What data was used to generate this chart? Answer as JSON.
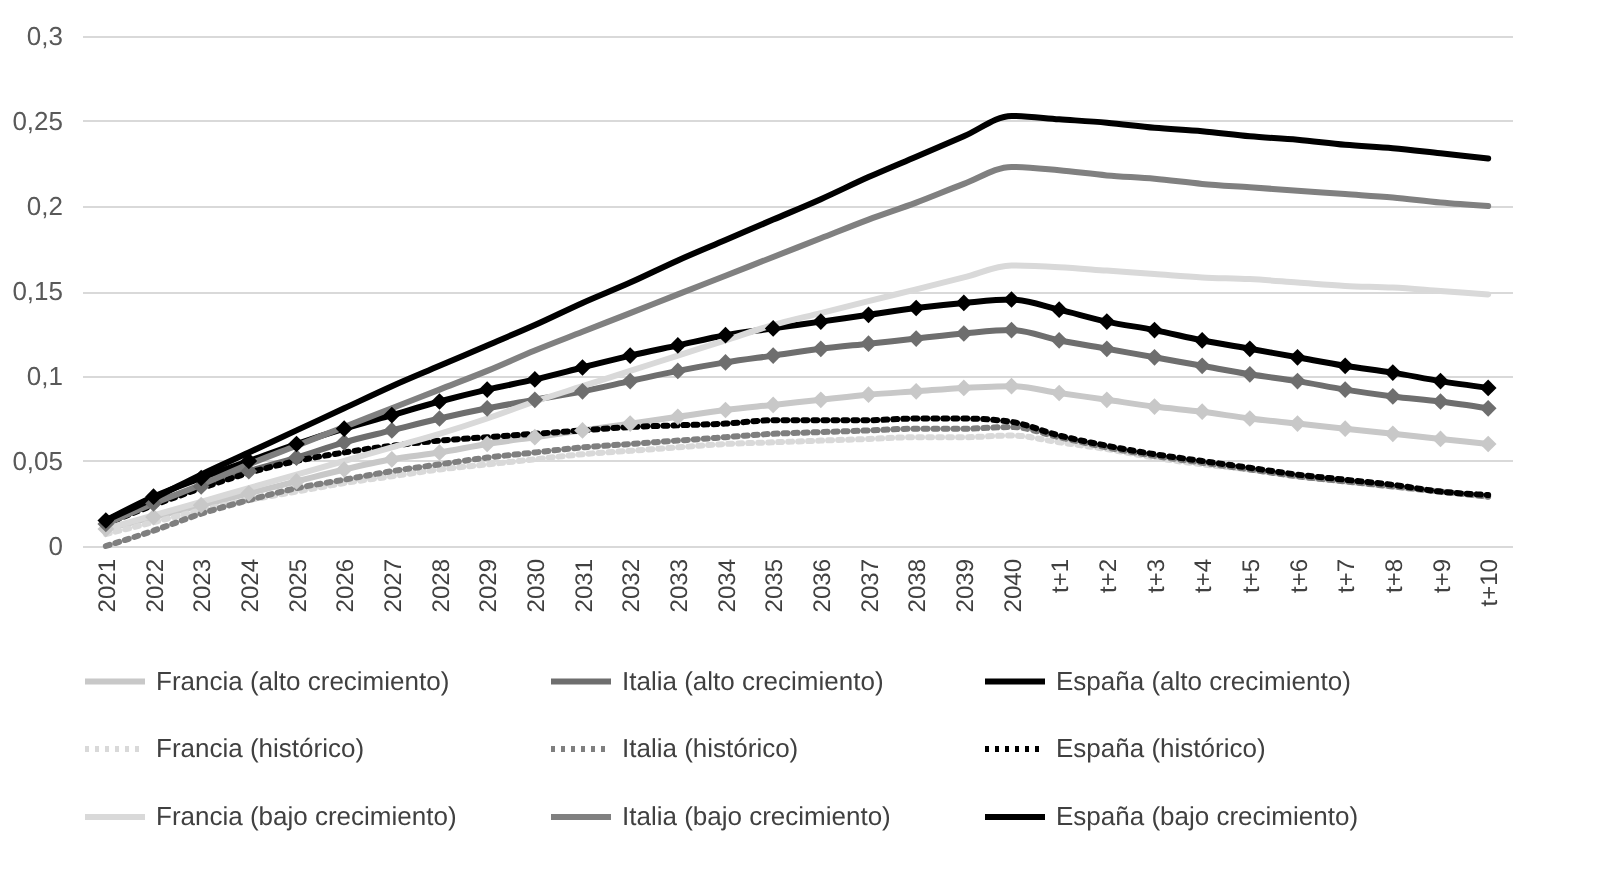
{
  "chart_data": {
    "type": "line",
    "categories": [
      "2021",
      "2022",
      "2023",
      "2024",
      "2025",
      "2026",
      "2027",
      "2028",
      "2029",
      "2030",
      "2031",
      "2032",
      "2033",
      "2034",
      "2035",
      "2036",
      "2037",
      "2038",
      "2039",
      "2040",
      "t+1",
      "t+2",
      "t+3",
      "t+4",
      "t+5",
      "t+6",
      "t+7",
      "t+8",
      "t+9",
      "t+10"
    ],
    "ylim": [
      0,
      0.3
    ],
    "yticks": [
      0,
      {
        "value": 0.05,
        "label": "0,05"
      },
      {
        "value": 0.1,
        "label": "0,1"
      },
      {
        "value": 0.15,
        "label": "0,15"
      },
      {
        "value": 0.2,
        "label": "0,2"
      },
      {
        "value": 0.25,
        "label": "0,25"
      },
      {
        "value": 0.3,
        "label": "0,3"
      }
    ],
    "grid": "y",
    "legend": "bottom",
    "series": [
      {
        "name": "Francia (alto crecimiento)",
        "color": "#c8c8c8",
        "marker": "diamond",
        "line_style": "solid",
        "values": [
          0.01,
          0.017,
          0.024,
          0.031,
          0.038,
          0.045,
          0.051,
          0.055,
          0.06,
          0.064,
          0.068,
          0.072,
          0.076,
          0.08,
          0.083,
          0.086,
          0.089,
          0.091,
          0.093,
          0.094,
          0.09,
          0.086,
          0.082,
          0.079,
          0.075,
          0.072,
          0.069,
          0.066,
          0.063,
          0.06
        ]
      },
      {
        "name": "Italia (alto crecimiento)",
        "color": "#6e6e6e",
        "marker": "diamond",
        "line_style": "solid",
        "values": [
          0.013,
          0.025,
          0.035,
          0.044,
          0.052,
          0.061,
          0.068,
          0.075,
          0.081,
          0.086,
          0.091,
          0.097,
          0.103,
          0.108,
          0.112,
          0.116,
          0.119,
          0.122,
          0.125,
          0.127,
          0.121,
          0.116,
          0.111,
          0.106,
          0.101,
          0.097,
          0.092,
          0.088,
          0.085,
          0.081
        ]
      },
      {
        "name": "España (alto crecimiento)",
        "color": "#000000",
        "marker": "diamond",
        "line_style": "solid",
        "values": [
          0.015,
          0.029,
          0.04,
          0.05,
          0.06,
          0.069,
          0.077,
          0.085,
          0.092,
          0.098,
          0.105,
          0.112,
          0.118,
          0.124,
          0.128,
          0.132,
          0.136,
          0.14,
          0.143,
          0.145,
          0.139,
          0.132,
          0.127,
          0.121,
          0.116,
          0.111,
          0.106,
          0.102,
          0.097,
          0.093
        ]
      },
      {
        "name": "Francia (histórico)",
        "color": "#d9d9d9",
        "marker": "none",
        "line_style": "dotted",
        "values": [
          0.007,
          0.014,
          0.021,
          0.027,
          0.032,
          0.037,
          0.041,
          0.045,
          0.048,
          0.051,
          0.054,
          0.056,
          0.058,
          0.06,
          0.061,
          0.062,
          0.063,
          0.064,
          0.064,
          0.065,
          0.061,
          0.057,
          0.052,
          0.048,
          0.045,
          0.041,
          0.038,
          0.035,
          0.032,
          0.029
        ]
      },
      {
        "name": "Italia (histórico)",
        "color": "#7f7f7f",
        "marker": "none",
        "line_style": "dotted",
        "values": [
          0.0,
          0.009,
          0.019,
          0.027,
          0.034,
          0.039,
          0.044,
          0.048,
          0.052,
          0.055,
          0.058,
          0.06,
          0.062,
          0.064,
          0.066,
          0.067,
          0.068,
          0.069,
          0.069,
          0.07,
          0.064,
          0.058,
          0.053,
          0.049,
          0.045,
          0.041,
          0.038,
          0.035,
          0.032,
          0.029
        ]
      },
      {
        "name": "España (histórico)",
        "color": "#000000",
        "marker": "none",
        "line_style": "dotted",
        "values": [
          0.013,
          0.024,
          0.034,
          0.043,
          0.05,
          0.055,
          0.059,
          0.062,
          0.064,
          0.066,
          0.068,
          0.07,
          0.071,
          0.072,
          0.074,
          0.074,
          0.074,
          0.075,
          0.075,
          0.073,
          0.065,
          0.059,
          0.054,
          0.05,
          0.046,
          0.042,
          0.039,
          0.036,
          0.032,
          0.03
        ]
      },
      {
        "name": "Francia (bajo crecimiento)",
        "color": "#d9d9d9",
        "marker": "none",
        "line_style": "solid",
        "values": [
          0.01,
          0.018,
          0.026,
          0.034,
          0.042,
          0.05,
          0.058,
          0.066,
          0.075,
          0.085,
          0.094,
          0.103,
          0.112,
          0.121,
          0.13,
          0.137,
          0.144,
          0.151,
          0.158,
          0.165,
          0.164,
          0.162,
          0.16,
          0.158,
          0.157,
          0.155,
          0.153,
          0.152,
          0.15,
          0.148
        ]
      },
      {
        "name": "Italia (bajo crecimiento)",
        "color": "#808080",
        "marker": "none",
        "line_style": "solid",
        "values": [
          0.013,
          0.025,
          0.036,
          0.048,
          0.059,
          0.07,
          0.081,
          0.092,
          0.103,
          0.115,
          0.126,
          0.137,
          0.148,
          0.159,
          0.17,
          0.181,
          0.192,
          0.202,
          0.213,
          0.223,
          0.221,
          0.218,
          0.216,
          0.213,
          0.211,
          0.209,
          0.207,
          0.205,
          0.202,
          0.2
        ]
      },
      {
        "name": "España (bajo crecimiento)",
        "color": "#000000",
        "marker": "none",
        "line_style": "solid",
        "values": [
          0.015,
          0.028,
          0.042,
          0.055,
          0.068,
          0.081,
          0.094,
          0.106,
          0.118,
          0.13,
          0.143,
          0.155,
          0.168,
          0.18,
          0.192,
          0.204,
          0.217,
          0.229,
          0.241,
          0.253,
          0.251,
          0.249,
          0.246,
          0.244,
          0.241,
          0.239,
          0.236,
          0.234,
          0.231,
          0.228
        ]
      }
    ]
  }
}
